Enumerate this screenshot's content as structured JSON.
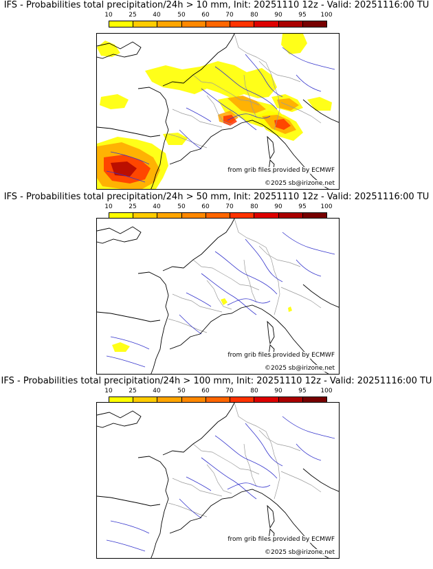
{
  "colors": {
    "scale": [
      "#ffff00",
      "#ffcc00",
      "#ffa500",
      "#ff8800",
      "#ff6600",
      "#ff3300",
      "#dd0000",
      "#aa0000",
      "#770000"
    ],
    "coast": "#000000",
    "rivers": "#3333cc",
    "borders": "#999999"
  },
  "colorbar": {
    "ticks": [
      "10",
      "25",
      "40",
      "50",
      "60",
      "70",
      "80",
      "90",
      "95",
      "100"
    ]
  },
  "panels": [
    {
      "title": "IFS - Probabilities total precipitation/24h > 10 mm, Init: 20251110 12z - Valid: 20251116:00 TU",
      "credit_source": "from grib files provided by ECMWF",
      "credit_site": "©2025 sb@irizone.net",
      "threshold_mm": 10,
      "precip_extent": "large"
    },
    {
      "title": "IFS - Probabilities total precipitation/24h > 50 mm, Init: 20251110 12z - Valid: 20251116:00 TU",
      "credit_source": "from grib files provided by ECMWF",
      "credit_site": "©2025 sb@irizone.net",
      "threshold_mm": 50,
      "precip_extent": "small"
    },
    {
      "title": "IFS - Probabilities total precipitation/24h > 100 mm, Init: 20251110 12z - Valid: 20251116:00 TU",
      "credit_source": "from grib files provided by ECMWF",
      "credit_site": "©2025 sb@irizone.net",
      "threshold_mm": 100,
      "precip_extent": "none"
    }
  ]
}
